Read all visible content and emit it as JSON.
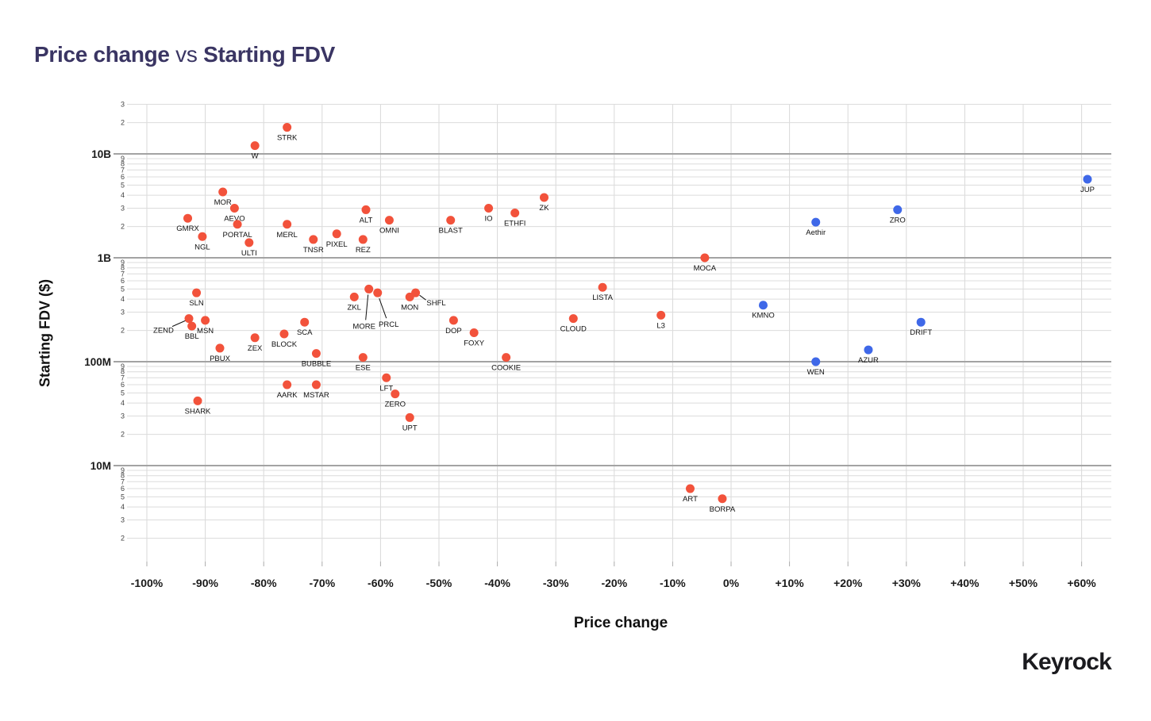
{
  "title": {
    "part1": "Price change",
    "sep": " vs ",
    "part2": "Starting FDV"
  },
  "x_axis": {
    "title": "Price change",
    "tick_values": [
      -100,
      -90,
      -80,
      -70,
      -60,
      -50,
      -40,
      -30,
      -20,
      -10,
      0,
      10,
      20,
      30,
      40,
      50,
      60
    ],
    "tick_labels": [
      "-100%",
      "-90%",
      "-80%",
      "-70%",
      "-60%",
      "-50%",
      "-40%",
      "-30%",
      "-20%",
      "-10%",
      "0%",
      "+10%",
      "+20%",
      "+30%",
      "+40%",
      "+50%",
      "+60%"
    ]
  },
  "y_axis": {
    "title": "Starting FDV ($)",
    "majors": [
      {
        "value": 10000000.0,
        "label": "10M"
      },
      {
        "value": 100000000.0,
        "label": "100M"
      },
      {
        "value": 1000000000.0,
        "label": "1B"
      },
      {
        "value": 10000000000.0,
        "label": "10B"
      }
    ],
    "min_value": 2000000.0,
    "max_value": 30000000000.0
  },
  "branding": {
    "logo_text": "Keyrock"
  },
  "colors": {
    "red_dot": "#F2523B",
    "blue_dot": "#3F68E8",
    "title_text": "#3A3563",
    "grid_minor": "#DCDCDC",
    "grid_major": "#A3A3A3",
    "grid_vertical": "#D8D8D8",
    "tick_mark": "#ABABAB",
    "axis_text": "#1A1A1A",
    "point_label": "#111111"
  },
  "chart_data": {
    "type": "scatter",
    "title": "Price change vs Starting FDV",
    "xlabel": "Price change",
    "ylabel": "Starting FDV ($)",
    "x_unit": "percent",
    "y_scale": "log10",
    "x_range": [
      -100,
      60
    ],
    "y_range": [
      2000000.0,
      30000000000.0
    ],
    "grid": true,
    "legend": false,
    "points": [
      {
        "label": "STRK",
        "price_change_pct": -76,
        "starting_fdv_usd": 18000000000.0,
        "color": "red"
      },
      {
        "label": "W",
        "price_change_pct": -81.5,
        "starting_fdv_usd": 12000000000.0,
        "color": "red"
      },
      {
        "label": "MOR",
        "price_change_pct": -87,
        "starting_fdv_usd": 4300000000.0,
        "color": "red"
      },
      {
        "label": "AEVO",
        "price_change_pct": -85,
        "starting_fdv_usd": 3000000000.0,
        "color": "red"
      },
      {
        "label": "PORTAL",
        "price_change_pct": -84.5,
        "starting_fdv_usd": 2100000000.0,
        "color": "red"
      },
      {
        "label": "GMRX",
        "price_change_pct": -93,
        "starting_fdv_usd": 2400000000.0,
        "color": "red"
      },
      {
        "label": "NGL",
        "price_change_pct": -90.5,
        "starting_fdv_usd": 1600000000.0,
        "color": "red"
      },
      {
        "label": "MERL",
        "price_change_pct": -76,
        "starting_fdv_usd": 2100000000.0,
        "color": "red"
      },
      {
        "label": "ULTI",
        "price_change_pct": -82.5,
        "starting_fdv_usd": 1400000000.0,
        "color": "red"
      },
      {
        "label": "TNSR",
        "price_change_pct": -71.5,
        "starting_fdv_usd": 1500000000.0,
        "color": "red"
      },
      {
        "label": "PIXEL",
        "price_change_pct": -67.5,
        "starting_fdv_usd": 1700000000.0,
        "color": "red"
      },
      {
        "label": "REZ",
        "price_change_pct": -63,
        "starting_fdv_usd": 1500000000.0,
        "color": "red"
      },
      {
        "label": "ALT",
        "price_change_pct": -62.5,
        "starting_fdv_usd": 2900000000.0,
        "color": "red"
      },
      {
        "label": "OMNI",
        "price_change_pct": -58.5,
        "starting_fdv_usd": 2300000000.0,
        "color": "red"
      },
      {
        "label": "BLAST",
        "price_change_pct": -48,
        "starting_fdv_usd": 2300000000.0,
        "color": "red"
      },
      {
        "label": "IO",
        "price_change_pct": -41.5,
        "starting_fdv_usd": 3000000000.0,
        "color": "red"
      },
      {
        "label": "ETHFI",
        "price_change_pct": -37,
        "starting_fdv_usd": 2700000000.0,
        "color": "red"
      },
      {
        "label": "ZK",
        "price_change_pct": -32,
        "starting_fdv_usd": 3800000000.0,
        "color": "red"
      },
      {
        "label": "MOCA",
        "price_change_pct": -4.5,
        "starting_fdv_usd": 1000000000.0,
        "color": "red"
      },
      {
        "label": "LISTA",
        "price_change_pct": -22,
        "starting_fdv_usd": 520000000.0,
        "color": "red"
      },
      {
        "label": "CLOUD",
        "price_change_pct": -27,
        "starting_fdv_usd": 260000000.0,
        "color": "red"
      },
      {
        "label": "L3",
        "price_change_pct": -12,
        "starting_fdv_usd": 280000000.0,
        "color": "red"
      },
      {
        "label": "SLN",
        "price_change_pct": -91.5,
        "starting_fdv_usd": 460000000.0,
        "color": "red"
      },
      {
        "label": "ZEND",
        "price_change_pct": -92.8,
        "starting_fdv_usd": 260000000.0,
        "color": "red",
        "callout": {
          "text": [
            -32,
            15
          ],
          "line": [
            [
              -21,
              10
            ],
            [
              -3,
              2
            ]
          ]
        }
      },
      {
        "label": "MSN",
        "price_change_pct": -90,
        "starting_fdv_usd": 250000000.0,
        "color": "red"
      },
      {
        "label": "BBL",
        "price_change_pct": -92.3,
        "starting_fdv_usd": 220000000.0,
        "color": "red"
      },
      {
        "label": "PBUX",
        "price_change_pct": -87.5,
        "starting_fdv_usd": 135000000.0,
        "color": "red"
      },
      {
        "label": "ZEX",
        "price_change_pct": -81.5,
        "starting_fdv_usd": 170000000.0,
        "color": "red"
      },
      {
        "label": "BLOCK",
        "price_change_pct": -76.5,
        "starting_fdv_usd": 185000000.0,
        "color": "red"
      },
      {
        "label": "SCA",
        "price_change_pct": -73,
        "starting_fdv_usd": 240000000.0,
        "color": "red"
      },
      {
        "label": "BUBBLE",
        "price_change_pct": -71,
        "starting_fdv_usd": 120000000.0,
        "color": "red"
      },
      {
        "label": "AARK",
        "price_change_pct": -76,
        "starting_fdv_usd": 60000000.0,
        "color": "red"
      },
      {
        "label": "MSTAR",
        "price_change_pct": -71,
        "starting_fdv_usd": 60000000.0,
        "color": "red"
      },
      {
        "label": "SHARK",
        "price_change_pct": -91.3,
        "starting_fdv_usd": 42000000.0,
        "color": "red"
      },
      {
        "label": "ZKL",
        "price_change_pct": -64.5,
        "starting_fdv_usd": 420000000.0,
        "color": "red"
      },
      {
        "label": "MORE",
        "price_change_pct": -62,
        "starting_fdv_usd": 500000000.0,
        "color": "red",
        "callout": {
          "text": [
            -6,
            47
          ],
          "line": [
            [
              -4,
              39
            ],
            [
              -1,
              7
            ]
          ]
        }
      },
      {
        "label": "PRCL",
        "price_change_pct": -60.5,
        "starting_fdv_usd": 460000000.0,
        "color": "red",
        "callout": {
          "text": [
            14,
            40
          ],
          "line": [
            [
              11,
              32
            ],
            [
              2,
              7
            ]
          ]
        }
      },
      {
        "label": "MON",
        "price_change_pct": -55,
        "starting_fdv_usd": 420000000.0,
        "color": "red"
      },
      {
        "label": "SHFL",
        "price_change_pct": -54,
        "starting_fdv_usd": 460000000.0,
        "color": "red",
        "callout": {
          "text": [
            26,
            13
          ],
          "line": [
            [
              13,
              9
            ],
            [
              5,
              3
            ]
          ]
        }
      },
      {
        "label": "DOP",
        "price_change_pct": -47.5,
        "starting_fdv_usd": 250000000.0,
        "color": "red"
      },
      {
        "label": "FOXY",
        "price_change_pct": -44,
        "starting_fdv_usd": 190000000.0,
        "color": "red"
      },
      {
        "label": "ESE",
        "price_change_pct": -63,
        "starting_fdv_usd": 110000000.0,
        "color": "red"
      },
      {
        "label": "COOKIE",
        "price_change_pct": -38.5,
        "starting_fdv_usd": 110000000.0,
        "color": "red"
      },
      {
        "label": "LFT",
        "price_change_pct": -59,
        "starting_fdv_usd": 70000000.0,
        "color": "red"
      },
      {
        "label": "ZERO",
        "price_change_pct": -57.5,
        "starting_fdv_usd": 49000000.0,
        "color": "red"
      },
      {
        "label": "UPT",
        "price_change_pct": -55,
        "starting_fdv_usd": 29000000.0,
        "color": "red"
      },
      {
        "label": "ART",
        "price_change_pct": -7,
        "starting_fdv_usd": 6000000.0,
        "color": "red"
      },
      {
        "label": "BORPA",
        "price_change_pct": -1.5,
        "starting_fdv_usd": 4800000.0,
        "color": "red"
      },
      {
        "label": "KMNO",
        "price_change_pct": 5.5,
        "starting_fdv_usd": 350000000.0,
        "color": "blue"
      },
      {
        "label": "Aethir",
        "price_change_pct": 14.5,
        "starting_fdv_usd": 2200000000.0,
        "color": "blue"
      },
      {
        "label": "WEN",
        "price_change_pct": 14.5,
        "starting_fdv_usd": 100000000.0,
        "color": "blue"
      },
      {
        "label": "AZUR",
        "price_change_pct": 23.5,
        "starting_fdv_usd": 130000000.0,
        "color": "blue"
      },
      {
        "label": "ZRO",
        "price_change_pct": 28.5,
        "starting_fdv_usd": 2900000000.0,
        "color": "blue"
      },
      {
        "label": "DRIFT",
        "price_change_pct": 32.5,
        "starting_fdv_usd": 240000000.0,
        "color": "blue"
      },
      {
        "label": "JUP",
        "price_change_pct": 61,
        "starting_fdv_usd": 5700000000.0,
        "color": "blue"
      }
    ]
  }
}
